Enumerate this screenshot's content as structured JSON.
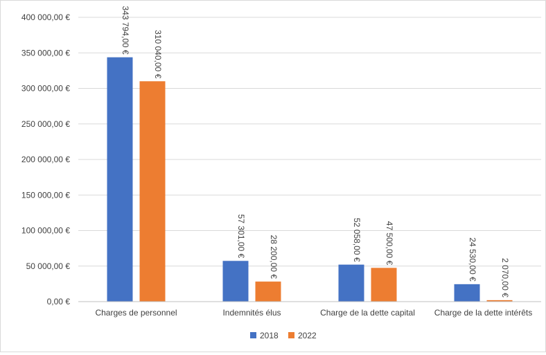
{
  "chart_data": {
    "type": "bar",
    "title": "",
    "xlabel": "",
    "ylabel": "",
    "categories": [
      "Charges de personnel",
      "Indemnités élus",
      "Charge de la dette capital",
      "Charge de la dette intérêts"
    ],
    "series": [
      {
        "name": "2018",
        "color": "#4472c4",
        "values": [
          343794,
          57301,
          52058,
          24530
        ],
        "labels": [
          "343 794,00 €",
          "57 301,00 €",
          "52 058,00 €",
          "24 530,00 €"
        ]
      },
      {
        "name": "2022",
        "color": "#ed7d31",
        "values": [
          310040,
          28200,
          47500,
          2070
        ],
        "labels": [
          "310 040,00 €",
          "28 200,00 €",
          "47 500,00 €",
          "2 070,00 €"
        ]
      }
    ],
    "ylim": [
      0,
      400000
    ],
    "yticks": [
      0,
      50000,
      100000,
      150000,
      200000,
      250000,
      300000,
      350000,
      400000
    ],
    "ytick_labels": [
      "0,00 €",
      "50 000,00 €",
      "100 000,00 €",
      "150 000,00 €",
      "200 000,00 €",
      "250 000,00 €",
      "300 000,00 €",
      "350 000,00 €",
      "400 000,00 €"
    ],
    "grid": true,
    "legend_position": "bottom"
  }
}
